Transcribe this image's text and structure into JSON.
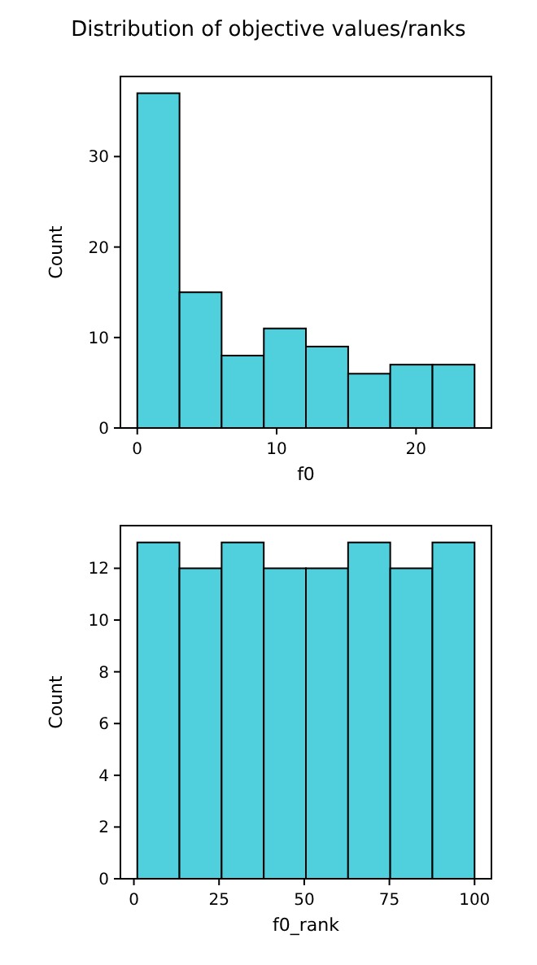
{
  "chart_data": [
    {
      "type": "histogram",
      "title": "Distribution of objective values/ranks",
      "xlabel": "f0",
      "ylabel": "Count",
      "bins": [
        0,
        3.03,
        6.05,
        9.08,
        12.1,
        15.13,
        18.15,
        21.18,
        24.2
      ],
      "values": [
        37,
        15,
        8,
        11,
        9,
        6,
        7,
        7
      ],
      "color": "#4fd0dc",
      "xlim": [
        -1.21,
        25.41
      ],
      "xticks": [
        0,
        10,
        20
      ],
      "ylim": [
        0,
        38.85
      ],
      "yticks": [
        0,
        10,
        20,
        30
      ],
      "grid": false
    },
    {
      "type": "histogram",
      "xlabel": "f0_rank",
      "ylabel": "Count",
      "bins": [
        1,
        13.375,
        25.75,
        38.125,
        50.5,
        62.875,
        75.25,
        87.625,
        100
      ],
      "values": [
        13,
        12,
        13,
        12,
        12,
        13,
        12,
        13
      ],
      "color": "#4fd0dc",
      "xlim": [
        -3.95,
        104.95
      ],
      "xticks": [
        0,
        25,
        50,
        75,
        100
      ],
      "ylim": [
        0,
        13.65
      ],
      "yticks": [
        0,
        2,
        4,
        6,
        8,
        10,
        12
      ],
      "grid": false
    }
  ]
}
